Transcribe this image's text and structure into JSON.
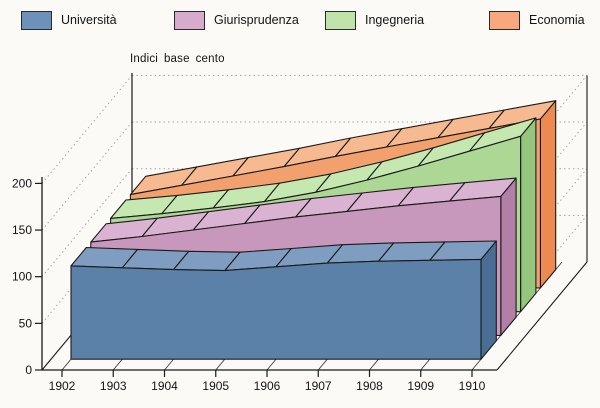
{
  "title": "Indici base cento",
  "legend": {
    "items": [
      {
        "label": "Università",
        "color": "#6d92ba"
      },
      {
        "label": "Giurisprudenza",
        "color": "#d6abcb"
      },
      {
        "label": "Ingegneria",
        "color": "#bfe3a8"
      },
      {
        "label": "Economia",
        "color": "#f8a87c"
      }
    ]
  },
  "chart_data": {
    "type": "area",
    "style": "3d-ribbon",
    "title": "Indici base cento",
    "x": [
      1902,
      1903,
      1904,
      1905,
      1906,
      1907,
      1908,
      1909,
      1910
    ],
    "series": [
      {
        "name": "Università",
        "values": [
          100,
          98,
          96,
          95,
          99,
          103,
          105,
          106,
          107
        ],
        "front": "#5c81a8",
        "top": "#7e9dc1",
        "side": "#4a6d94"
      },
      {
        "name": "Giurisprudenza",
        "values": [
          100,
          106,
          113,
          120,
          127,
          133,
          139,
          144,
          149
        ],
        "front": "#c897bc",
        "top": "#dab3d3",
        "side": "#b27fa7"
      },
      {
        "name": "Ingegneria",
        "values": [
          100,
          105,
          111,
          118,
          128,
          141,
          156,
          172,
          188
        ],
        "front": "#acd794",
        "top": "#c5e7b0",
        "side": "#95c67d"
      },
      {
        "name": "Economia",
        "values": [
          100,
          110,
          120,
          130,
          141,
          151,
          161,
          171,
          181
        ],
        "front": "#f2a06e",
        "top": "#f7b98f",
        "side": "#ec8a52"
      }
    ],
    "yticks": [
      0,
      50,
      100,
      150,
      200
    ],
    "ylim": [
      0,
      210
    ],
    "grid": "dotted-3d-walls",
    "legend_position": "top",
    "line_color": "#1a1a1a",
    "dot_grid_color": "#aaa59e"
  }
}
